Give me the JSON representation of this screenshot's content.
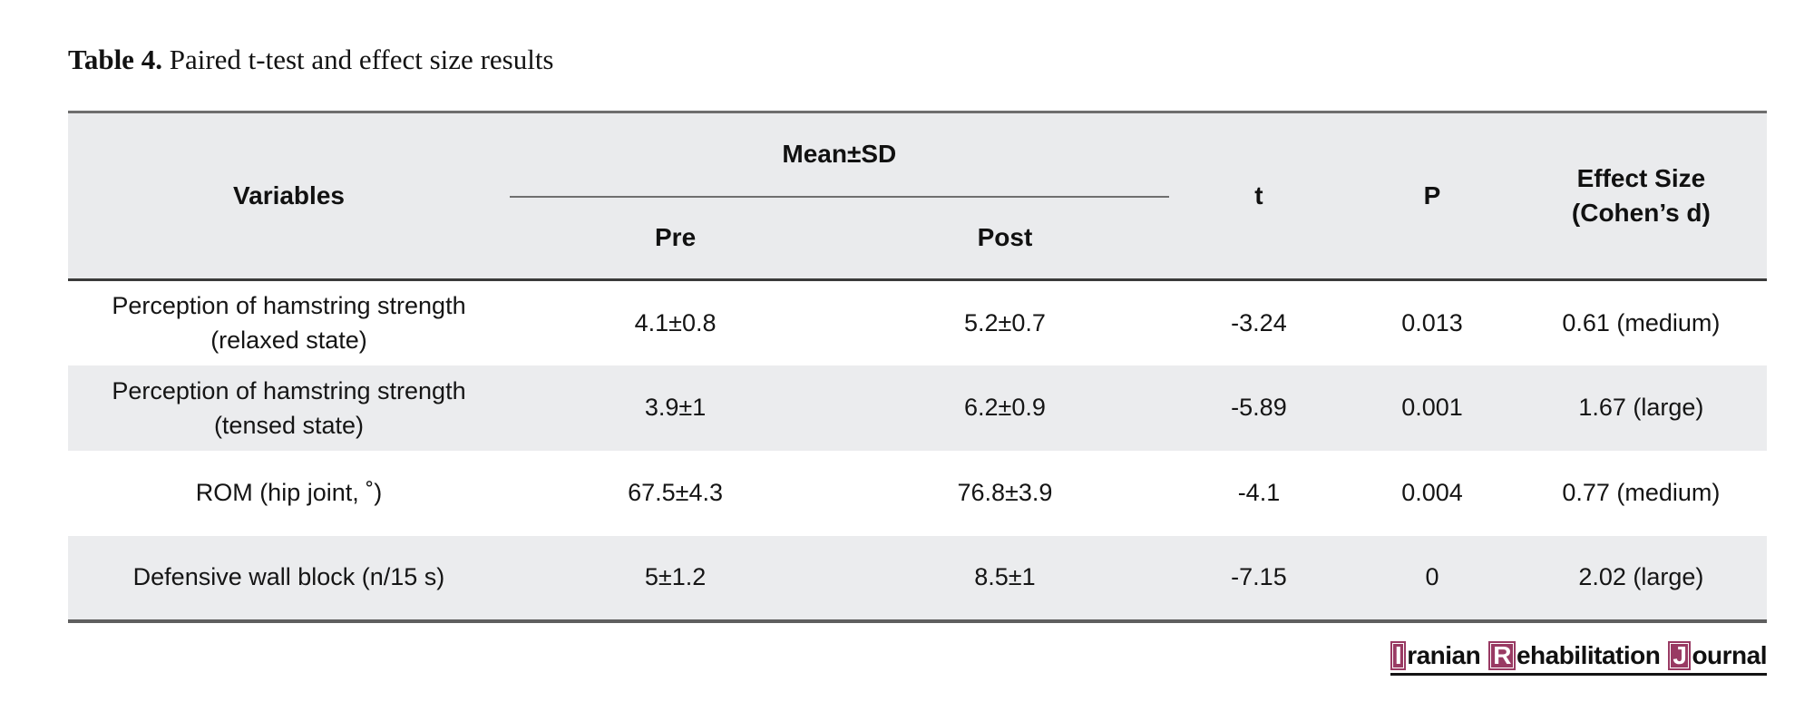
{
  "title": {
    "label": "Table 4.",
    "text": " Paired t-test and effect size results"
  },
  "table": {
    "headers": {
      "variables": "Variables",
      "mean_sd": "Mean±SD",
      "pre": "Pre",
      "post": "Post",
      "t": "t",
      "p": "P",
      "effect_size": "Effect Size\n(Cohen’s d)"
    },
    "rows": [
      {
        "variable": "Perception of hamstring strength\n(relaxed state)",
        "pre": "4.1±0.8",
        "post": "5.2±0.7",
        "t": "-3.24",
        "p": "0.013",
        "effect_size": "0.61 (medium)"
      },
      {
        "variable": "Perception of hamstring strength\n(tensed state)",
        "pre": "3.9±1",
        "post": "6.2±0.9",
        "t": "-5.89",
        "p": "0.001",
        "effect_size": "1.67 (large)"
      },
      {
        "variable": "ROM (hip joint, ˚)",
        "pre": "67.5±4.3",
        "post": "76.8±3.9",
        "t": "-4.1",
        "p": "0.004",
        "effect_size": "0.77 (medium)"
      },
      {
        "variable": "Defensive wall block (n/15 s)",
        "pre": "5±1.2",
        "post": "8.5±1",
        "t": "-7.15",
        "p": "0",
        "effect_size": "2.02 (large)"
      }
    ]
  },
  "footer_logo": {
    "words": [
      {
        "initial": "I",
        "rest": "ranian"
      },
      {
        "initial": "R",
        "rest": "ehabilitation"
      },
      {
        "initial": "J",
        "rest": "ournal"
      }
    ],
    "box_color": "#993a63"
  },
  "colors": {
    "header_background": "#eaebed",
    "stripe_background": "#ebecee",
    "logo_box": "#993a63"
  }
}
